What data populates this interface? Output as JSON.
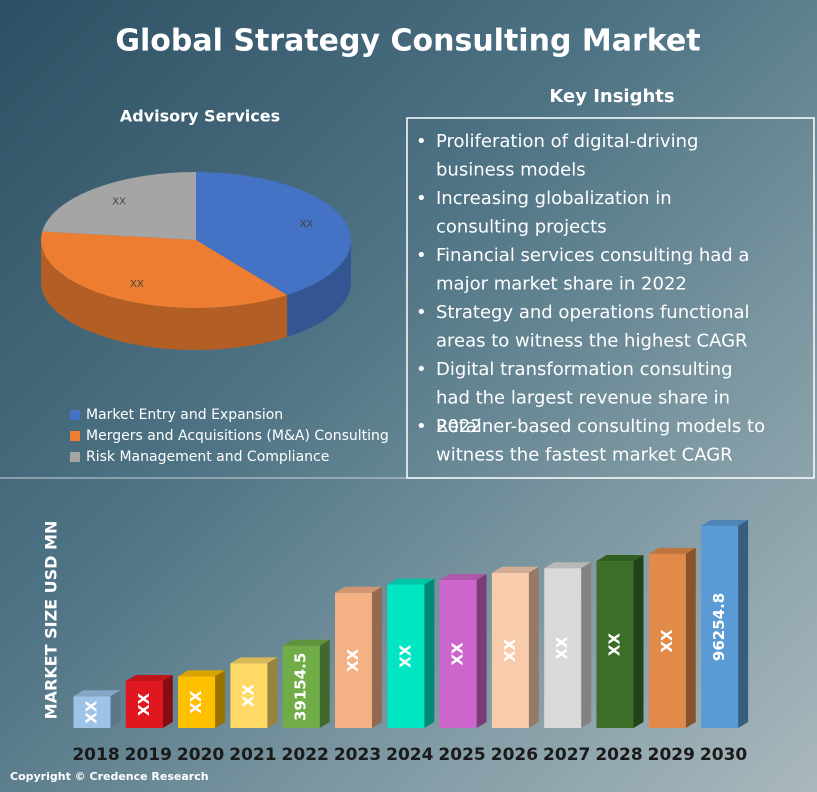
{
  "title": "Global Strategy Consulting Market",
  "chart_data": [
    {
      "type": "pie",
      "title": "Advisory Services",
      "categories": [
        "Market Entry and Expansion",
        "Mergers and Acquisitions (M&A) Consulting",
        "Risk Management and Compliance"
      ],
      "values": [
        40,
        37,
        23
      ],
      "value_labels": [
        "XX",
        "XX",
        "XX"
      ],
      "colors": [
        "#4472c4",
        "#ed7d31",
        "#a5a5a5"
      ]
    },
    {
      "type": "bar",
      "y_label": "MARKET SIZE USD MN",
      "categories": [
        "2018",
        "2019",
        "2020",
        "2021",
        "2022",
        "2023",
        "2024",
        "2025",
        "2026",
        "2027",
        "2028",
        "2029",
        "2030"
      ],
      "values": [
        15100,
        22400,
        24600,
        30800,
        39154.5,
        64400,
        68300,
        70500,
        73900,
        76100,
        79500,
        82900,
        96254.8
      ],
      "value_labels": [
        "XX",
        "XX",
        "XX",
        "XX",
        "39154.5",
        "XX",
        "XX",
        "XX",
        "XX",
        "XX",
        "XX",
        "XX",
        "96254.8"
      ],
      "colors": [
        "#9dc3e6",
        "#e0171f",
        "#ffc000",
        "#ffd966",
        "#70ad47",
        "#f4b183",
        "#00e6c3",
        "#cc66cc",
        "#f8cbad",
        "#d9d9d9",
        "#3c6e28",
        "#e28a4a",
        "#5b9bd5"
      ],
      "ylim": [
        0,
        100000
      ]
    }
  ],
  "key_insights": {
    "title": "Key Insights",
    "items": [
      "Proliferation of digital-driving business models",
      "Increasing globalization in consulting projects",
      "Financial services consulting had a major market share in 2022",
      "Strategy and operations functional areas to witness the highest CAGR",
      "Digital transformation consulting had the largest revenue share in 2022",
      "Retainer-based consulting models to witness the fastest market CAGR"
    ]
  },
  "copyright": "Copyright © Credence Research"
}
